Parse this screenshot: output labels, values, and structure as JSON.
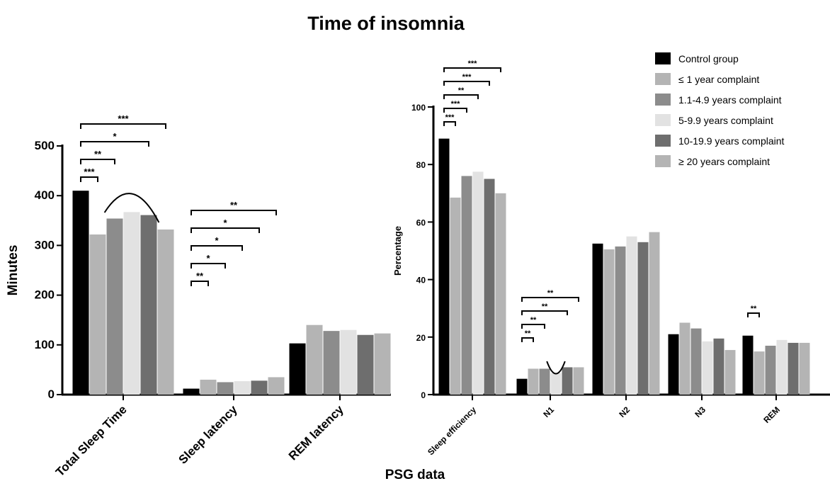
{
  "figure": {
    "title": "Time of insomnia",
    "xlabel": "PSG data"
  },
  "chart_data": [
    {
      "type": "bar",
      "ylabel": "Minutes",
      "ylim": [
        0,
        500
      ],
      "yticks": [
        0,
        100,
        200,
        300,
        400,
        500
      ],
      "categories": [
        "Total Sleep Time",
        "Sleep latency",
        "REM latency"
      ],
      "series": [
        {
          "name": "Control group",
          "color": "#000000",
          "values": [
            410,
            12,
            103
          ]
        },
        {
          "name": "≤ 1 year complaint",
          "color": "#b4b4b4",
          "values": [
            322,
            30,
            140
          ]
        },
        {
          "name": "1.1-4.9  years complaint",
          "color": "#8c8c8c",
          "values": [
            354,
            25,
            128
          ]
        },
        {
          "name": "5-9.9 years complaint",
          "color": "#e2e2e2",
          "values": [
            367,
            27,
            130
          ]
        },
        {
          "name": "10-19.9 years complaint",
          "color": "#6e6e6e",
          "values": [
            361,
            28,
            120
          ]
        },
        {
          "name": "≥ 20 years complaint",
          "color": "#b4b4b4",
          "values": [
            332,
            35,
            123
          ]
        }
      ],
      "significance": [
        {
          "category": 0,
          "from": 0,
          "to": 1,
          "label": "***",
          "level": 0
        },
        {
          "category": 0,
          "from": 0,
          "to": 2,
          "label": "**",
          "level": 1
        },
        {
          "category": 0,
          "from": 0,
          "to": 4,
          "label": "*",
          "level": 2
        },
        {
          "category": 0,
          "from": 0,
          "to": 5,
          "label": "***",
          "level": 3
        },
        {
          "category": 1,
          "from": 0,
          "to": 1,
          "label": "**",
          "level": 0
        },
        {
          "category": 1,
          "from": 0,
          "to": 2,
          "label": "*",
          "level": 1
        },
        {
          "category": 1,
          "from": 0,
          "to": 3,
          "label": "*",
          "level": 2
        },
        {
          "category": 1,
          "from": 0,
          "to": 4,
          "label": "*",
          "level": 3
        },
        {
          "category": 1,
          "from": 0,
          "to": 5,
          "label": "**",
          "level": 4
        }
      ]
    },
    {
      "type": "bar",
      "ylabel": "Percentage",
      "ylim": [
        0,
        100
      ],
      "yticks": [
        0,
        20,
        40,
        60,
        80,
        100
      ],
      "categories": [
        "Sleep efficiency",
        "N1",
        "N2",
        "N3",
        "REM"
      ],
      "series": [
        {
          "name": "Control group",
          "color": "#000000",
          "values": [
            89,
            5.5,
            52.5,
            21,
            20.5
          ]
        },
        {
          "name": "≤ 1 year complaint",
          "color": "#b4b4b4",
          "values": [
            68.5,
            9,
            50.5,
            25,
            15
          ]
        },
        {
          "name": "1.1-4.9  years complaint",
          "color": "#8c8c8c",
          "values": [
            76,
            9,
            51.5,
            23,
            17
          ]
        },
        {
          "name": "5-9.9 years complaint",
          "color": "#e2e2e2",
          "values": [
            77.5,
            7.5,
            55,
            18.5,
            19
          ]
        },
        {
          "name": "10-19.9 years complaint",
          "color": "#6e6e6e",
          "values": [
            75,
            9.5,
            53,
            19.5,
            18
          ]
        },
        {
          "name": "≥ 20 years complaint",
          "color": "#b4b4b4",
          "values": [
            70,
            9.5,
            56.5,
            15.5,
            18
          ]
        }
      ],
      "significance": [
        {
          "category": 0,
          "from": 0,
          "to": 1,
          "label": "***",
          "level": 0
        },
        {
          "category": 0,
          "from": 0,
          "to": 2,
          "label": "***",
          "level": 1
        },
        {
          "category": 0,
          "from": 0,
          "to": 3,
          "label": "**",
          "level": 2
        },
        {
          "category": 0,
          "from": 0,
          "to": 4,
          "label": "***",
          "level": 3
        },
        {
          "category": 0,
          "from": 0,
          "to": 5,
          "label": "***",
          "level": 4
        },
        {
          "category": 1,
          "from": 0,
          "to": 1,
          "label": "**",
          "level": 0
        },
        {
          "category": 1,
          "from": 0,
          "to": 2,
          "label": "**",
          "level": 1
        },
        {
          "category": 1,
          "from": 0,
          "to": 4,
          "label": "**",
          "level": 2
        },
        {
          "category": 1,
          "from": 0,
          "to": 5,
          "label": "**",
          "level": 3
        },
        {
          "category": 4,
          "from": 0,
          "to": 1,
          "label": "**",
          "level": 0
        }
      ]
    }
  ]
}
